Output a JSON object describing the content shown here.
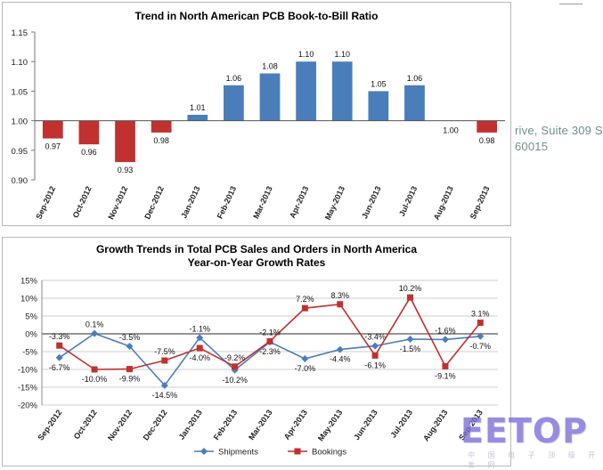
{
  "side_text": {
    "line1": "rive, Suite 309 S",
    "line2": "60015"
  },
  "logo": {
    "text": "EETOP",
    "subtitle": "中 国 电 子 顶 级 开 发 网",
    "color": "#7a6cd8"
  },
  "chart_data": [
    {
      "type": "bar",
      "title": "Trend in North American PCB Book-to-Bill Ratio",
      "categories": [
        "Sep-2012",
        "Oct-2012",
        "Nov-2012",
        "Dec-2012",
        "Jan-2013",
        "Feb-2013",
        "Mar-2013",
        "Apr-2013",
        "May-2013",
        "Jun-2013",
        "Jul-2013",
        "Aug-2013",
        "Sep-2013"
      ],
      "values": [
        0.97,
        0.96,
        0.93,
        0.98,
        1.01,
        1.06,
        1.08,
        1.1,
        1.1,
        1.05,
        1.06,
        1.0,
        0.98
      ],
      "data_labels": [
        "0.97",
        "0.96",
        "0.93",
        "0.98",
        "1.01",
        "1.06",
        "1.08",
        "1.10",
        "1.10",
        "1.05",
        "1.06",
        "1.00",
        "0.98"
      ],
      "baseline": 1.0,
      "ylim": [
        0.9,
        1.15
      ],
      "yticks": [
        "0.90",
        "0.95",
        "1.00",
        "1.05",
        "1.10",
        "1.15"
      ],
      "grid": false,
      "colors": {
        "above": "#4a7ebb",
        "below": "#c0312f"
      }
    },
    {
      "type": "line",
      "title": "Growth Trends in Total PCB Sales and Orders in North America",
      "subtitle": "Year-on-Year Growth Rates",
      "categories": [
        "Sep-2012",
        "Oct-2012",
        "Nov-2012",
        "Dec-2012",
        "Jan-2013",
        "Feb-2013",
        "Mar-2013",
        "Apr-2013",
        "May-2013",
        "Jun-2013",
        "Jul-2013",
        "Aug-2013",
        "Sep-2013"
      ],
      "ylim": [
        -20,
        15
      ],
      "yticks": [
        "-20%",
        "-15%",
        "-10%",
        "-5%",
        "0%",
        "5%",
        "10%",
        "15%"
      ],
      "grid": true,
      "legend_position": "bottom",
      "series": [
        {
          "name": "Shipments",
          "color": "#4a7ebb",
          "marker": "diamond",
          "values": [
            -6.7,
            0.1,
            -3.5,
            -14.5,
            -1.1,
            -10.2,
            -2.3,
            -7.0,
            -4.4,
            -3.4,
            -1.5,
            -1.6,
            -0.7
          ],
          "labels": [
            "-6.7%",
            "0.1%",
            "-3.5%",
            "-14.5%",
            "-1.1%",
            "-10.2%",
            "-2.3%",
            "-7.0%",
            "-4.4%",
            "-3.4%",
            "-1.5%",
            "-1.6%",
            "-0.7%"
          ]
        },
        {
          "name": "Bookings",
          "color": "#c0312f",
          "marker": "square",
          "values": [
            -3.3,
            -10.0,
            -9.9,
            -7.5,
            -4.0,
            -9.2,
            -2.1,
            7.2,
            8.3,
            -6.1,
            10.2,
            -9.1,
            3.1
          ],
          "labels": [
            "-3.3%",
            "-10.0%",
            "-9.9%",
            "-7.5%",
            "-4.0%",
            "-9.2%",
            "-2.1%",
            "7.2%",
            "8.3%",
            "-6.1%",
            "10.2%",
            "-9.1%",
            "3.1%"
          ]
        }
      ]
    }
  ]
}
